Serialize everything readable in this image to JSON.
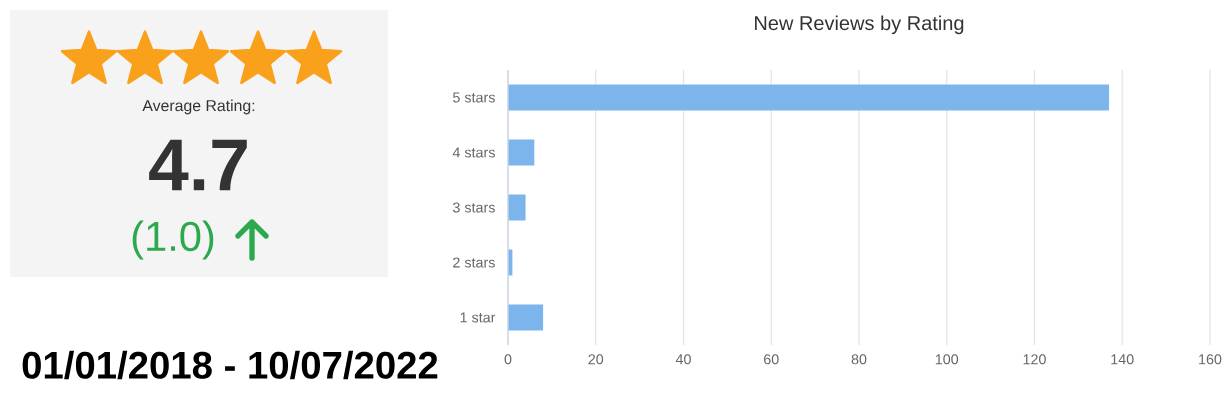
{
  "chart_data": [
    {
      "type": "other",
      "annotations": [
        "Average Rating:",
        "4.7",
        "(1.0)",
        "01/01/2018 - 10/07/2022"
      ]
    },
    {
      "type": "bar",
      "orientation": "horizontal",
      "title": "New Reviews by Rating",
      "categories": [
        "5 stars",
        "4 stars",
        "3 stars",
        "2 stars",
        "1 star"
      ],
      "values": [
        137,
        6,
        4,
        1,
        8
      ],
      "color": "#7cb5ec",
      "xlim": [
        0,
        160
      ],
      "xticks": [
        0,
        20,
        40,
        60,
        80,
        100,
        120,
        140,
        160
      ],
      "grid": "x"
    }
  ]
}
